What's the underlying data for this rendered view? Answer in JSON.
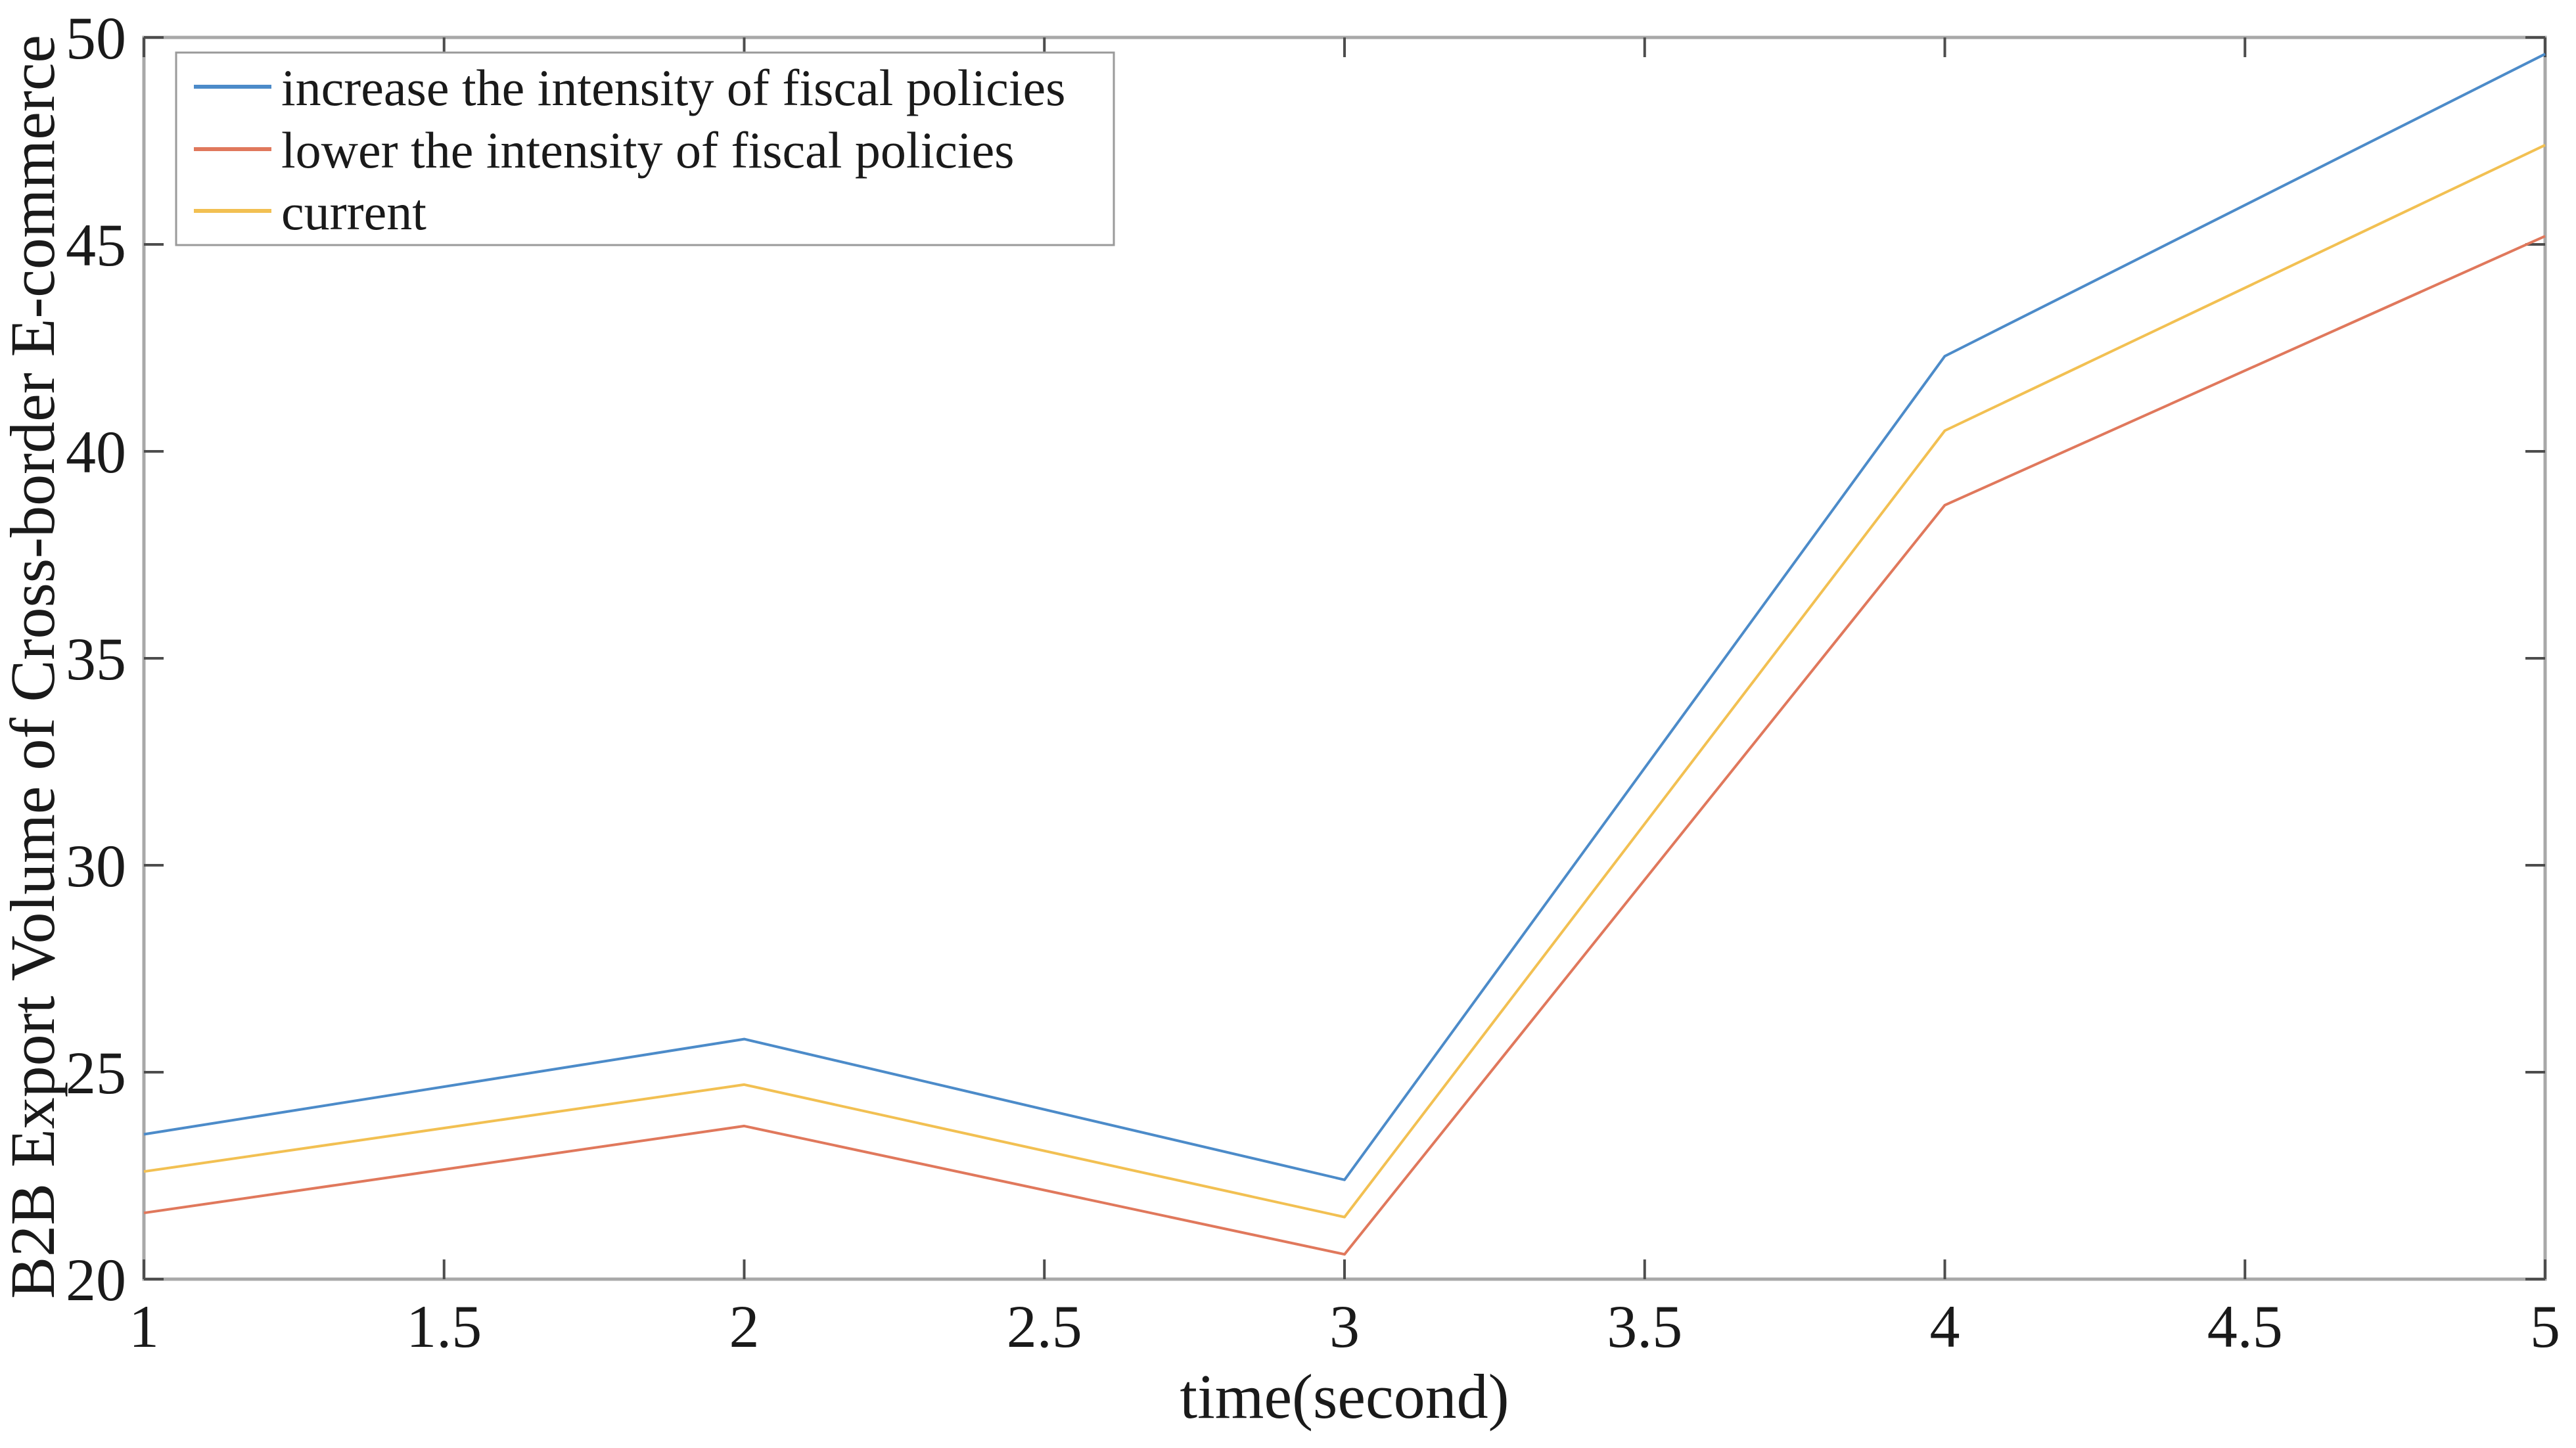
{
  "figure": {
    "background": "#ffffff",
    "axis_box_color": "#a8a8a8",
    "tick_mark_color": "#4d4d4d",
    "text_color": "#1a1a1a",
    "legend_border_color": "#9a9a9a"
  },
  "chart_data": {
    "type": "line",
    "title": "",
    "xlabel": "time(second)",
    "ylabel": "B2B Export Volume of Cross-border E-commerce",
    "x": [
      1,
      2,
      3,
      4,
      5
    ],
    "xlim": [
      1,
      5
    ],
    "ylim": [
      20,
      50
    ],
    "x_ticks": [
      "1",
      "1.5",
      "2",
      "2.5",
      "3",
      "3.5",
      "4",
      "4.5",
      "5"
    ],
    "y_ticks": [
      "20",
      "25",
      "30",
      "35",
      "40",
      "45",
      "50"
    ],
    "grid": false,
    "box": true,
    "legend_position": "top-left",
    "series": [
      {
        "name": "increase the intensity of fiscal policies",
        "color": "#4C8BC9",
        "values": [
          23.5,
          25.8,
          22.4,
          42.3,
          49.6
        ]
      },
      {
        "name": "lower the intensity of fiscal policies",
        "color": "#E0785C",
        "values": [
          21.6,
          23.7,
          20.6,
          38.7,
          45.2
        ]
      },
      {
        "name": "current",
        "color": "#F2C052",
        "values": [
          22.6,
          24.7,
          21.5,
          40.5,
          47.4
        ]
      }
    ]
  }
}
